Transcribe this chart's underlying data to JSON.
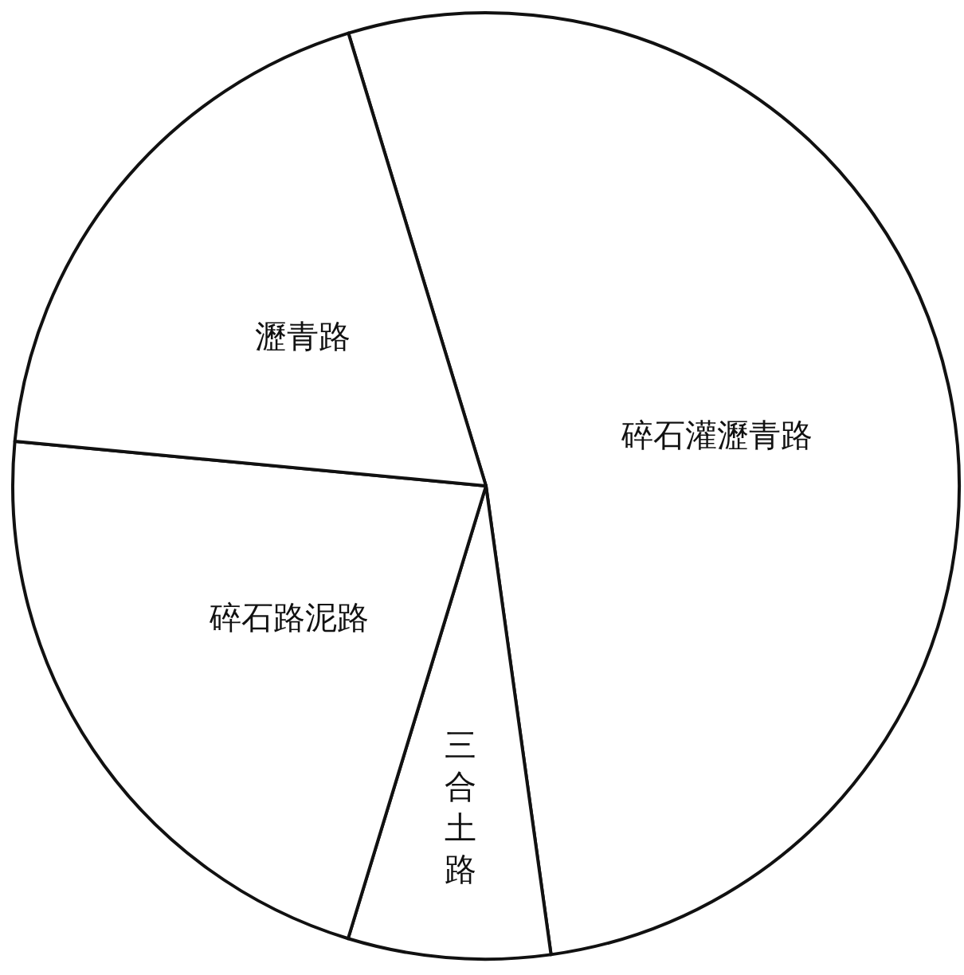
{
  "chart_data": {
    "type": "pie",
    "categories": [
      "碎石灌瀝青路",
      "三合土路",
      "碎石路泥路",
      "瀝青路"
    ],
    "values": [
      52.5,
      6.9,
      21.8,
      18.8
    ],
    "colors": [
      "#ffffff",
      "#ffffff",
      "#ffffff",
      "#ffffff"
    ]
  }
}
